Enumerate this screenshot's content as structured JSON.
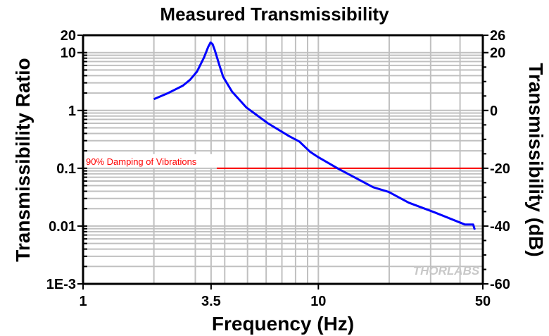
{
  "chart_data": {
    "type": "line",
    "title": "Measured Transmissibility",
    "xlabel": "Frequency (Hz)",
    "ylabel": "Transmissibility Ratio",
    "y2label": "Transmissibility (dB)",
    "xscale": "log",
    "yscale": "log",
    "xlim": [
      1,
      50
    ],
    "ylim": [
      0.001,
      20
    ],
    "y2lim": [
      -60,
      26
    ],
    "grid": true,
    "x_ticks": [
      {
        "v": 1,
        "label": "1"
      },
      {
        "v": 3.5,
        "label": "3.5"
      },
      {
        "v": 10,
        "label": "10"
      },
      {
        "v": 50,
        "label": "50"
      }
    ],
    "y_ticks": [
      {
        "v": 20,
        "label": "20"
      },
      {
        "v": 10,
        "label": "10"
      },
      {
        "v": 1,
        "label": "1"
      },
      {
        "v": 0.1,
        "label": "0.1"
      },
      {
        "v": 0.01,
        "label": "0.01"
      },
      {
        "v": 0.001,
        "label": "1E-3"
      }
    ],
    "y2_ticks": [
      {
        "v": 26,
        "label": "26"
      },
      {
        "v": 20,
        "label": "20"
      },
      {
        "v": 0,
        "label": "0"
      },
      {
        "v": -20,
        "label": "-20"
      },
      {
        "v": -40,
        "label": "-40"
      },
      {
        "v": -60,
        "label": "-60"
      }
    ],
    "series": [
      {
        "color": "#0000ff",
        "x": [
          2.0,
          2.3,
          2.66,
          2.85,
          3.05,
          3.27,
          3.4,
          3.48,
          3.55,
          3.63,
          3.8,
          3.94,
          4.3,
          4.95,
          6.1,
          7.5,
          8.3,
          9.2,
          10,
          12.1,
          17.1,
          19.9,
          24.2,
          30.8,
          36.6,
          42,
          45.5,
          46.2
        ],
        "y": [
          1.57,
          2.0,
          2.69,
          3.4,
          4.7,
          8.3,
          12.5,
          15,
          14,
          11,
          6.0,
          3.8,
          2.1,
          1.12,
          0.6,
          0.36,
          0.29,
          0.194,
          0.155,
          0.099,
          0.047,
          0.039,
          0.0254,
          0.0176,
          0.0133,
          0.0106,
          0.0106,
          0.0087
        ]
      }
    ],
    "annotations": [
      {
        "type": "hline",
        "y": 0.1,
        "x_start": 3.7,
        "color": "#ff0000",
        "text": "90% Damping of Vibrations"
      }
    ]
  },
  "watermark": "THORLABS"
}
